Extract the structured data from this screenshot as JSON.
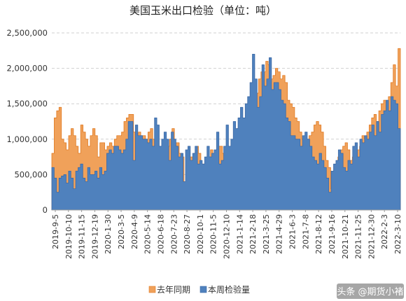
{
  "chart_data": {
    "type": "area",
    "title": "美国玉米出口检验（单位：吨）",
    "ylim": [
      0,
      2500000
    ],
    "y_ticks": [
      "0",
      "500,000",
      "1,000,000",
      "1,500,000",
      "2,000,000",
      "2,500,000"
    ],
    "y_tick_values": [
      0,
      500000,
      1000000,
      1500000,
      2000000,
      2500000
    ],
    "x_tick_labels": [
      "2019-9-5",
      "2019-10-10",
      "2019-11-15",
      "2019-12-19",
      "2020-1-30",
      "2020-3-5",
      "2020-4-9",
      "2020-5-14",
      "2020-6-18",
      "2020-7-23",
      "2020-8-27",
      "2020-10-1",
      "2020-11-5",
      "2020-12-10",
      "2021-1-14",
      "2021-2-18",
      "2021-3-25",
      "2021-4-29",
      "2021-6-3",
      "2021-7-8",
      "2021-8-12",
      "2021-9-16",
      "2021-10-21",
      "2021-11-25",
      "2021-12-30",
      "2022-2-3",
      "2022-3-10"
    ],
    "grid": "horizontal-dashed",
    "legend_position": "bottom",
    "series": [
      {
        "name": "去年同期",
        "type": "area",
        "color": "#f0a15a",
        "edge_color": "#e07b24",
        "values": [
          800000,
          1300000,
          1400000,
          1450000,
          1000000,
          950000,
          850000,
          1050000,
          1150000,
          1050000,
          900000,
          800000,
          1200000,
          1100000,
          1000000,
          900000,
          1050000,
          1150000,
          1050000,
          750000,
          950000,
          950000,
          850000,
          900000,
          950000,
          900000,
          1000000,
          1050000,
          1050000,
          1100000,
          1250000,
          1300000,
          1350000,
          1350000,
          1100000,
          1050000,
          1100000,
          1050000,
          1050000,
          1000000,
          1100000,
          1150000,
          1000000,
          900000,
          850000,
          750000,
          950000,
          950000,
          900000,
          1000000,
          1150000,
          950000,
          950000,
          800000,
          750000,
          400000,
          700000,
          750000,
          750000,
          800000,
          900000,
          800000,
          650000,
          650000,
          700000,
          750000,
          850000,
          800000,
          800000,
          900000,
          900000,
          800000,
          850000,
          900000,
          850000,
          900000,
          1050000,
          1150000,
          1200000,
          1250000,
          1200000,
          1300000,
          1400000,
          1550000,
          1600000,
          1650000,
          1850000,
          1950000,
          1950000,
          2100000,
          2050000,
          1850000,
          1900000,
          2000000,
          1950000,
          1850000,
          1900000,
          1800000,
          1550000,
          1500000,
          1450000,
          1300000,
          1250000,
          1100000,
          1000000,
          950000,
          1000000,
          1050000,
          1100000,
          1200000,
          1250000,
          1200000,
          1100000,
          900000,
          700000,
          600000,
          300000,
          150000,
          550000,
          750000,
          850000,
          900000,
          950000,
          850000,
          700000,
          750000,
          800000,
          850000,
          900000,
          1050000,
          1000000,
          1100000,
          1200000,
          1300000,
          1350000,
          1250000,
          1400000,
          1500000,
          1550000,
          1400000,
          1600000,
          1800000,
          2050000,
          1750000,
          2280000
        ]
      },
      {
        "name": "本周检验量",
        "type": "area",
        "color": "#4f81bd",
        "edge_color": "#3d6aa6",
        "values": [
          600000,
          450000,
          250000,
          450000,
          480000,
          500000,
          380000,
          550000,
          450000,
          300000,
          550000,
          600000,
          650000,
          450000,
          400000,
          600000,
          500000,
          500000,
          550000,
          450000,
          600000,
          500000,
          550000,
          800000,
          850000,
          800000,
          900000,
          900000,
          850000,
          800000,
          850000,
          1000000,
          1250000,
          1250000,
          700000,
          1200000,
          1050000,
          1050000,
          1000000,
          1000000,
          950000,
          1000000,
          900000,
          1300000,
          1200000,
          900000,
          1000000,
          1100000,
          1000000,
          700000,
          1100000,
          1000000,
          900000,
          750000,
          800000,
          400000,
          850000,
          900000,
          700000,
          800000,
          900000,
          650000,
          700000,
          650000,
          750000,
          900000,
          750000,
          800000,
          850000,
          1100000,
          650000,
          700000,
          900000,
          1200000,
          900000,
          1000000,
          1250000,
          1150000,
          1300000,
          1450000,
          1300000,
          1500000,
          1600000,
          1800000,
          2200000,
          1850000,
          1450000,
          1600000,
          2050000,
          1750000,
          1850000,
          2150000,
          1700000,
          1800000,
          1800000,
          1700000,
          1550000,
          1500000,
          1300000,
          1250000,
          1050000,
          1050000,
          1000000,
          1000000,
          900000,
          1050000,
          1100000,
          1000000,
          900000,
          750000,
          700000,
          650000,
          800000,
          700000,
          600000,
          450000,
          250000,
          550000,
          650000,
          700000,
          850000,
          800000,
          600000,
          550000,
          700000,
          650000,
          900000,
          950000,
          750000,
          1000000,
          950000,
          1050000,
          1000000,
          1100000,
          1200000,
          1050000,
          1250000,
          1100000,
          1350000,
          1400000,
          1550000,
          1400000,
          1600000,
          1550000,
          1500000,
          1150000
        ]
      }
    ]
  },
  "watermark": {
    "text": "头条 @期货小褚"
  }
}
